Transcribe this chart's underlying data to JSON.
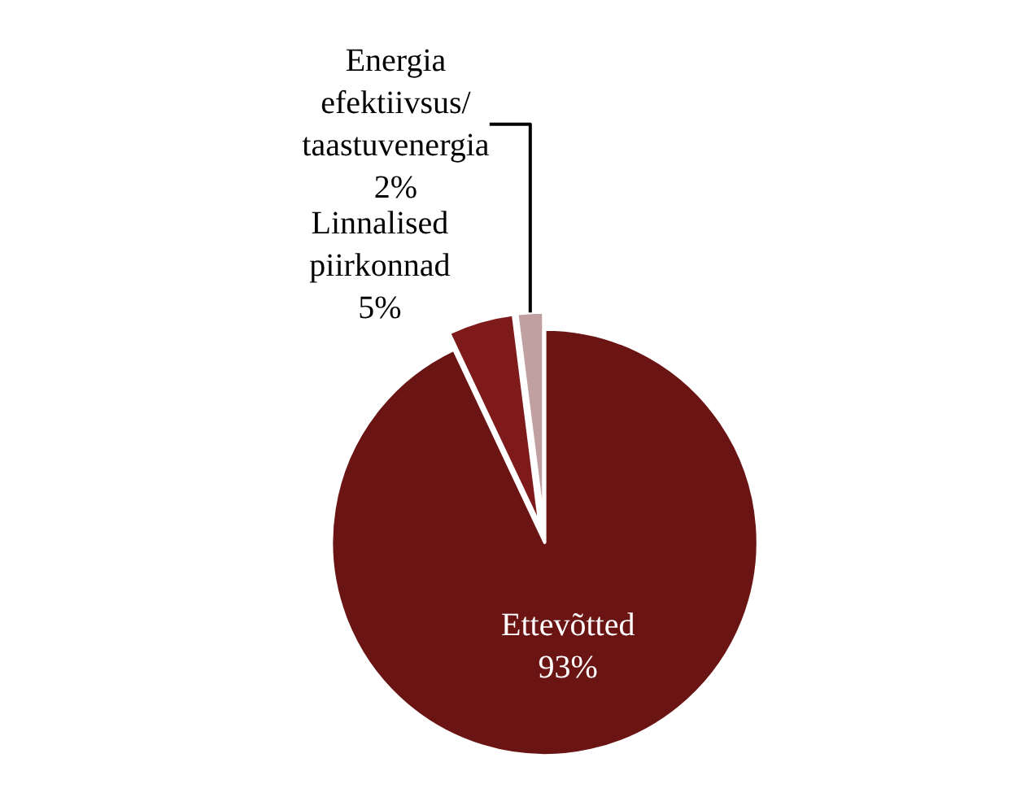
{
  "chart_data": {
    "type": "pie",
    "categories": [
      "Ettevõtted",
      "Linnalised piirkonnad",
      "Energia efektiivsus/ taastuvenergia"
    ],
    "values": [
      93,
      5,
      2
    ],
    "colors": [
      "#6b1414",
      "#7f1a1a",
      "#c0a0a0"
    ],
    "value_labels": [
      "93%",
      "5%",
      "2%"
    ],
    "legend": false
  }
}
